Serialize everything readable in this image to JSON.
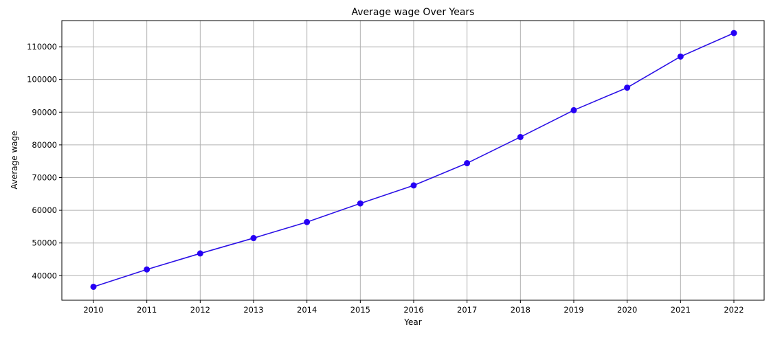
{
  "chart_data": {
    "type": "line",
    "title": "Average wage Over Years",
    "xlabel": "Year",
    "ylabel": "Average wage",
    "x": [
      "2010",
      "2011",
      "2012",
      "2013",
      "2014",
      "2015",
      "2016",
      "2017",
      "2018",
      "2019",
      "2020",
      "2021",
      "2022"
    ],
    "series": [
      {
        "values": [
          36600,
          41900,
          46800,
          51500,
          56400,
          62100,
          67600,
          74400,
          82400,
          90600,
          97500,
          107000,
          114200
        ]
      }
    ],
    "ylim": [
      32500,
      118000
    ],
    "y_ticks": [
      40000,
      50000,
      60000,
      70000,
      80000,
      90000,
      100000,
      110000
    ],
    "y_tick_labels": [
      "40000",
      "50000",
      "60000",
      "70000",
      "80000",
      "90000",
      "100000",
      "110000"
    ],
    "grid": true,
    "marker": "circle",
    "colors": {
      "line": "#2b10e6",
      "marker": "#2600f5",
      "grid": "#b0b0b0",
      "axis": "#000000"
    }
  }
}
